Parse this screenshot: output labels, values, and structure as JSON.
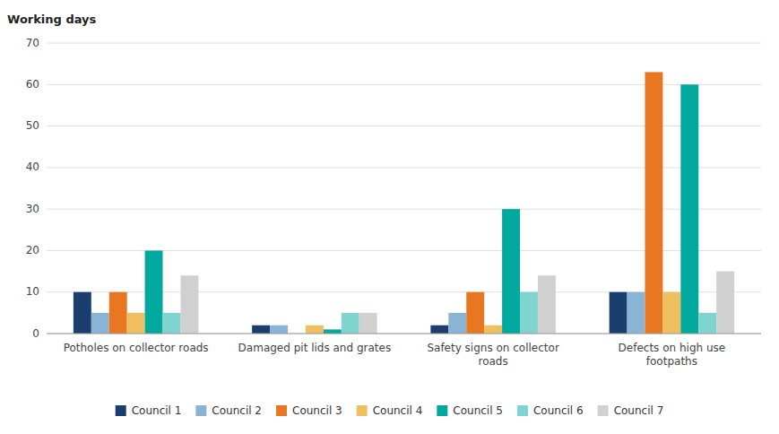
{
  "chart_data": {
    "type": "bar",
    "ylabel": "Working days",
    "categories": [
      "Potholes on collector roads",
      "Damaged pit lids and grates",
      "Safety signs on collector\nroads",
      "Defects on high use\nfootpaths"
    ],
    "series": [
      {
        "name": "Council 1",
        "color": "#1a3f6f",
        "values": [
          10,
          2,
          2,
          10
        ]
      },
      {
        "name": "Council 2",
        "color": "#8ab4d4",
        "values": [
          5,
          2,
          5,
          10
        ]
      },
      {
        "name": "Council 3",
        "color": "#e87722",
        "values": [
          10,
          0,
          10,
          63
        ]
      },
      {
        "name": "Council 4",
        "color": "#f0c060",
        "values": [
          5,
          2,
          2,
          10
        ]
      },
      {
        "name": "Council 5",
        "color": "#00a89d",
        "values": [
          20,
          1,
          30,
          60
        ]
      },
      {
        "name": "Council 6",
        "color": "#7fd4d0",
        "values": [
          5,
          5,
          10,
          5
        ]
      },
      {
        "name": "Council 7",
        "color": "#d0d0d0",
        "values": [
          14,
          5,
          14,
          15
        ]
      }
    ],
    "ylim": [
      0,
      70
    ],
    "yticks": [
      0,
      10,
      20,
      30,
      40,
      50,
      60,
      70
    ],
    "grid": true,
    "legend": "bottom"
  }
}
